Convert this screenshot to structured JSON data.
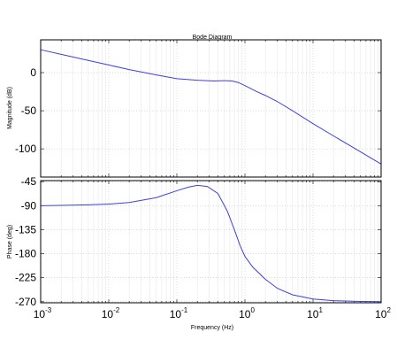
{
  "chart_data": {
    "type": "line",
    "title": "Bode Diagram",
    "xlabel": "Frequency  (Hz)",
    "xscale": "log",
    "xlim": [
      0.001,
      100
    ],
    "x_ticks": [
      0.001,
      0.01,
      0.1,
      1,
      10,
      100
    ],
    "x_tick_labels": [
      {
        "base": "10",
        "exp": "-3"
      },
      {
        "base": "10",
        "exp": "-2"
      },
      {
        "base": "10",
        "exp": "-1"
      },
      {
        "base": "10",
        "exp": "0"
      },
      {
        "base": "10",
        "exp": "1"
      },
      {
        "base": "10",
        "exp": "2"
      }
    ],
    "grid": true,
    "line_color": "#3f3fe0",
    "panels": [
      {
        "name": "magnitude",
        "ylabel": "Magnitude (dB)",
        "ylim": [
          -137,
          43
        ],
        "yticks": [
          0,
          -50,
          -100
        ],
        "ytick_labels": [
          "0",
          "-50",
          "-100"
        ],
        "series": [
          {
            "x": [
              0.001,
              0.002,
              0.005,
              0.01,
              0.02,
              0.05,
              0.1,
              0.2,
              0.35,
              0.5,
              0.65,
              0.8,
              1,
              1.5,
              2,
              3,
              5,
              10,
              20,
              50,
              100
            ],
            "y": [
              30,
              24,
              16,
              10,
              4,
              -3,
              -8,
              -10,
              -11,
              -10.5,
              -11,
              -13,
              -17,
              -25,
              -30,
              -38,
              -50,
              -67,
              -83,
              -104,
              -120
            ]
          }
        ]
      },
      {
        "name": "phase",
        "ylabel": "Phase (deg)",
        "ylim": [
          -272,
          -43
        ],
        "yticks": [
          -45,
          -90,
          -135,
          -180,
          -225,
          -270
        ],
        "ytick_labels": [
          "-45",
          "-90",
          "-135",
          "-180",
          "-225",
          "-270"
        ],
        "series": [
          {
            "x": [
              0.001,
              0.002,
              0.005,
              0.01,
              0.02,
              0.05,
              0.1,
              0.15,
              0.2,
              0.28,
              0.4,
              0.55,
              0.7,
              0.85,
              1,
              1.3,
              2,
              3,
              5,
              10,
              20,
              50,
              100
            ],
            "y": [
              -90,
              -89.5,
              -88.5,
              -87,
              -84,
              -75,
              -62,
              -55,
              -52,
              -54,
              -67,
              -100,
              -135,
              -165,
              -185,
              -205,
              -228,
              -245,
              -257,
              -265,
              -268,
              -269.5,
              -270
            ]
          }
        ]
      }
    ]
  }
}
